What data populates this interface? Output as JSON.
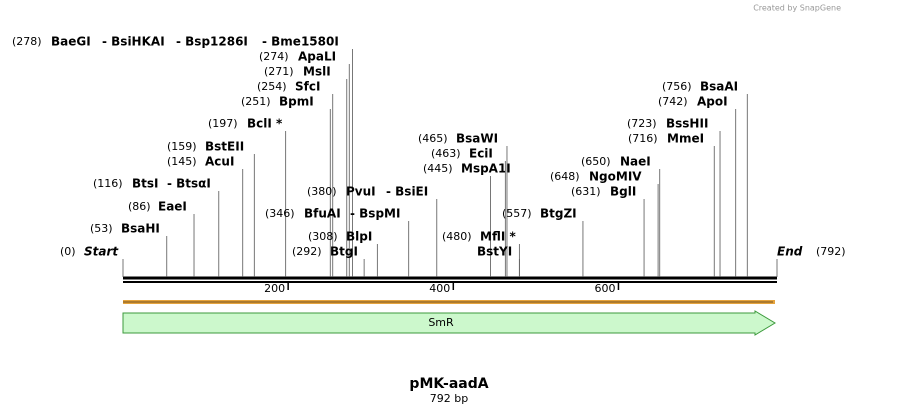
{
  "credit": "Created by SnapGene",
  "title": "pMK-aadA",
  "length_label": "792 bp",
  "length_bp": 792,
  "ticks": [
    200,
    400,
    600
  ],
  "features": [
    {
      "name": "SmR"
    }
  ],
  "sites": [
    {
      "pos": 0,
      "pos_label": "(0)",
      "names": [
        "Start"
      ]
    },
    {
      "pos": 53,
      "pos_label": "(53)",
      "names": [
        "BsaHI"
      ]
    },
    {
      "pos": 86,
      "pos_label": "(86)",
      "names": [
        "EaeI"
      ]
    },
    {
      "pos": 116,
      "pos_label": "(116)",
      "names": [
        "BtsI",
        "- BtsαI"
      ]
    },
    {
      "pos": 145,
      "pos_label": "(145)",
      "names": [
        "AcuI"
      ]
    },
    {
      "pos": 159,
      "pos_label": "(159)",
      "names": [
        "BstEII"
      ]
    },
    {
      "pos": 197,
      "pos_label": "(197)",
      "names": [
        "BclI *"
      ]
    },
    {
      "pos": 251,
      "pos_label": "(251)",
      "names": [
        "BpmI"
      ]
    },
    {
      "pos": 254,
      "pos_label": "(254)",
      "names": [
        "SfcI"
      ]
    },
    {
      "pos": 271,
      "pos_label": "(271)",
      "names": [
        "MslI"
      ]
    },
    {
      "pos": 274,
      "pos_label": "(274)",
      "names": [
        "ApaLI"
      ]
    },
    {
      "pos": 278,
      "pos_label": "(278)",
      "names": [
        "BaeGI",
        "- BsiHKAI",
        "- Bsp1286I",
        "- Bme1580I"
      ]
    },
    {
      "pos": 292,
      "pos_label": "(292)",
      "names": [
        "BtgI"
      ]
    },
    {
      "pos": 308,
      "pos_label": "(308)",
      "names": [
        "BlpI"
      ]
    },
    {
      "pos": 346,
      "pos_label": "(346)",
      "names": [
        "BfuAI",
        "- BspMI"
      ]
    },
    {
      "pos": 380,
      "pos_label": "(380)",
      "names": [
        "PvuI",
        "- BsiEI"
      ]
    },
    {
      "pos": 445,
      "pos_label": "(445)",
      "names": [
        "MspA1I"
      ]
    },
    {
      "pos": 463,
      "pos_label": "(463)",
      "names": [
        "EciI"
      ]
    },
    {
      "pos": 465,
      "pos_label": "(465)",
      "names": [
        "BsaWI"
      ]
    },
    {
      "pos": 480,
      "pos_label": "(480)",
      "names": [
        "MflI *"
      ]
    },
    {
      "pos": 480,
      "names": [
        "BstYI"
      ]
    },
    {
      "pos": 557,
      "pos_label": "(557)",
      "names": [
        "BtgZI"
      ]
    },
    {
      "pos": 631,
      "pos_label": "(631)",
      "names": [
        "BglI"
      ]
    },
    {
      "pos": 648,
      "pos_label": "(648)",
      "names": [
        "NgoMIV"
      ]
    },
    {
      "pos": 650,
      "pos_label": "(650)",
      "names": [
        "NaeI"
      ]
    },
    {
      "pos": 716,
      "pos_label": "(716)",
      "names": [
        "MmeI"
      ]
    },
    {
      "pos": 723,
      "pos_label": "(723)",
      "names": [
        "BssHII"
      ]
    },
    {
      "pos": 742,
      "pos_label": "(742)",
      "names": [
        "ApoI"
      ]
    },
    {
      "pos": 756,
      "pos_label": "(756)",
      "names": [
        "BsaAI"
      ]
    },
    {
      "pos": 792,
      "pos_label": "(792)",
      "names": [
        "End"
      ]
    }
  ]
}
